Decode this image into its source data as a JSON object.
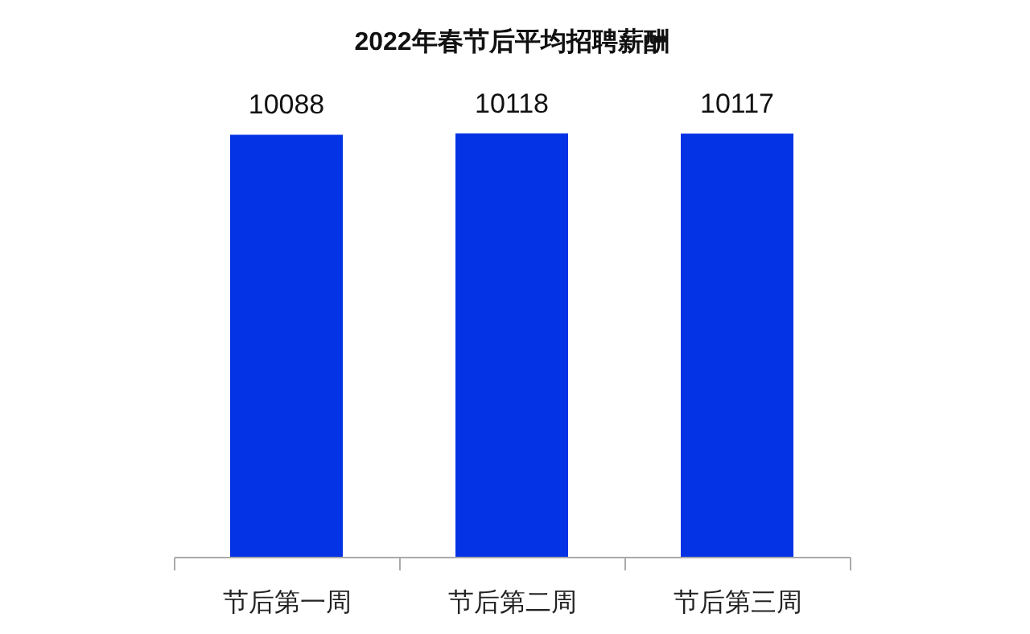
{
  "chart_data": {
    "type": "bar",
    "title": "2022年春节后平均招聘薪酬",
    "categories": [
      "节后第一周",
      "节后第二周",
      "节后第三周"
    ],
    "values": [
      10088,
      10118,
      10117
    ],
    "color": "#0433e6",
    "data_labels": true
  }
}
